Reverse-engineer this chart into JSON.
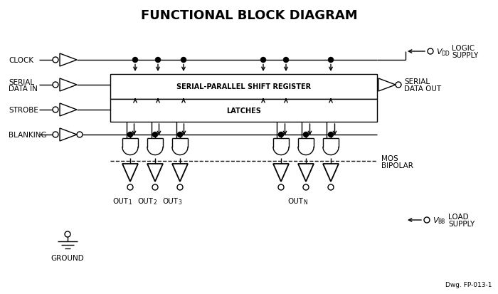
{
  "title": "FUNCTIONAL BLOCK DIAGRAM",
  "bg_color": "#ffffff",
  "line_color": "#000000",
  "figsize": [
    7.0,
    4.14
  ],
  "dpi": 100,
  "labels_left": [
    "CLOCK",
    "SERIAL\nDATA IN",
    "STROBE",
    "BLANKING"
  ],
  "label_right_vdd": [
    "LOGIC",
    "SUPPLY"
  ],
  "label_right_serial": [
    "SERIAL",
    "DATA OUT"
  ],
  "label_right_vbb": [
    "LOAD",
    "SUPPLY"
  ],
  "sr_text": "SERIAL-PARALLEL SHIFT REGISTER",
  "lat_text": "LATCHES",
  "mos_text": "MOS",
  "bipolar_text": "BIPOLAR",
  "ground_text": "GROUND",
  "dwg_text": "Dwg. FP-013-1",
  "out_labels": [
    "OUT",
    "OUT",
    "OUT",
    "OUT"
  ],
  "out_subs": [
    "1",
    "2",
    "3",
    "N"
  ]
}
